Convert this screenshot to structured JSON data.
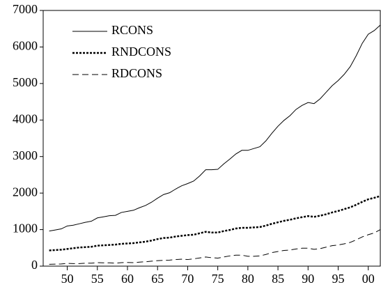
{
  "chart_data": {
    "type": "line",
    "x": [
      1947,
      1948,
      1949,
      1950,
      1951,
      1952,
      1953,
      1954,
      1955,
      1956,
      1957,
      1958,
      1959,
      1960,
      1961,
      1962,
      1963,
      1964,
      1965,
      1966,
      1967,
      1968,
      1969,
      1970,
      1971,
      1972,
      1973,
      1974,
      1975,
      1976,
      1977,
      1978,
      1979,
      1980,
      1981,
      1982,
      1983,
      1984,
      1985,
      1986,
      1987,
      1988,
      1989,
      1990,
      1991,
      1992,
      1993,
      1994,
      1995,
      1996,
      1997,
      1998,
      1999,
      2000,
      2001,
      2002
    ],
    "series": [
      {
        "name": "RCONS",
        "color": "#000000",
        "dash": "solid",
        "values": [
          960,
          990,
          1020,
          1100,
          1120,
          1160,
          1200,
          1230,
          1320,
          1350,
          1380,
          1390,
          1470,
          1500,
          1530,
          1600,
          1660,
          1750,
          1860,
          1960,
          2010,
          2110,
          2200,
          2260,
          2330,
          2470,
          2640,
          2640,
          2650,
          2800,
          2930,
          3070,
          3170,
          3170,
          3220,
          3270,
          3430,
          3640,
          3830,
          3990,
          4120,
          4290,
          4400,
          4480,
          4450,
          4580,
          4760,
          4940,
          5080,
          5250,
          5460,
          5760,
          6100,
          6350,
          6450,
          6600
        ]
      },
      {
        "name": "RNDCONS",
        "color": "#000000",
        "dash": "dotted",
        "values": [
          430,
          440,
          450,
          470,
          490,
          510,
          520,
          530,
          560,
          570,
          580,
          590,
          610,
          620,
          630,
          650,
          670,
          700,
          740,
          770,
          780,
          810,
          830,
          850,
          860,
          900,
          940,
          920,
          920,
          960,
          990,
          1030,
          1050,
          1050,
          1060,
          1070,
          1110,
          1160,
          1200,
          1240,
          1270,
          1310,
          1340,
          1370,
          1350,
          1380,
          1420,
          1470,
          1510,
          1560,
          1610,
          1680,
          1760,
          1830,
          1870,
          1920
        ]
      },
      {
        "name": "RDCONS",
        "color": "#000000",
        "dash": "dashed",
        "values": [
          50,
          55,
          60,
          75,
          70,
          70,
          80,
          80,
          95,
          90,
          90,
          80,
          95,
          100,
          95,
          110,
          120,
          135,
          150,
          160,
          165,
          180,
          190,
          180,
          200,
          225,
          250,
          230,
          220,
          250,
          280,
          300,
          300,
          270,
          270,
          280,
          320,
          370,
          400,
          430,
          440,
          470,
          490,
          490,
          460,
          480,
          520,
          560,
          580,
          610,
          650,
          720,
          800,
          860,
          910,
          1000
        ]
      }
    ],
    "xlim": [
      1946,
      2002
    ],
    "xticks": [
      {
        "value": 1950,
        "label": "50"
      },
      {
        "value": 1955,
        "label": "55"
      },
      {
        "value": 1960,
        "label": "60"
      },
      {
        "value": 1965,
        "label": "65"
      },
      {
        "value": 1970,
        "label": "70"
      },
      {
        "value": 1975,
        "label": "75"
      },
      {
        "value": 1980,
        "label": "80"
      },
      {
        "value": 1985,
        "label": "85"
      },
      {
        "value": 1990,
        "label": "90"
      },
      {
        "value": 1995,
        "label": "95"
      },
      {
        "value": 2000,
        "label": "00"
      }
    ],
    "ylim": [
      0,
      7000
    ],
    "yticks": [
      0,
      1000,
      2000,
      3000,
      4000,
      5000,
      6000,
      7000
    ],
    "grid": false,
    "legend": "top-left"
  }
}
